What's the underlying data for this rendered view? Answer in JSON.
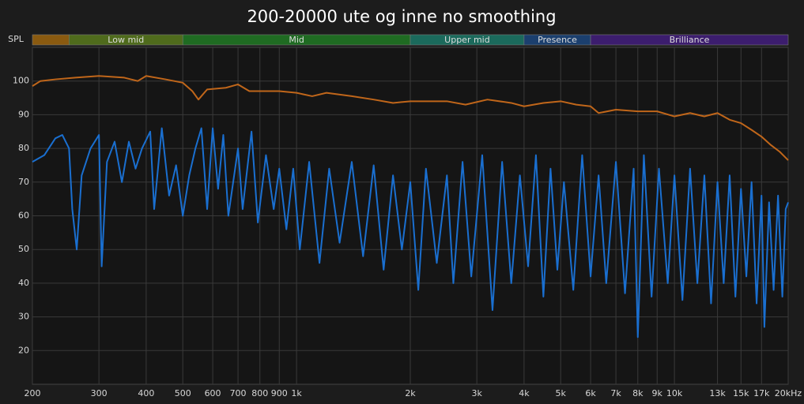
{
  "chart_data": {
    "type": "line",
    "title": "200-20000 ute og inne no smoothing",
    "ylabel": "SPL",
    "log_x": true,
    "grid": true,
    "xlim": [
      200,
      20000
    ],
    "ylim": [
      10,
      110
    ],
    "yticks": [
      20,
      30,
      40,
      50,
      60,
      70,
      80,
      90,
      100
    ],
    "xticks": [
      200,
      300,
      400,
      500,
      600,
      700,
      800,
      900,
      {
        "value": 1000,
        "label": "1k"
      },
      {
        "value": 2000,
        "label": "2k"
      },
      {
        "value": 3000,
        "label": "3k"
      },
      {
        "value": 4000,
        "label": "4k"
      },
      {
        "value": 5000,
        "label": "5k"
      },
      {
        "value": 6000,
        "label": "6k"
      },
      {
        "value": 7000,
        "label": "7k"
      },
      {
        "value": 8000,
        "label": "8k"
      },
      {
        "value": 9000,
        "label": "9k"
      },
      {
        "value": 10000,
        "label": "10k"
      },
      {
        "value": 13000,
        "label": "13k"
      },
      {
        "value": 15000,
        "label": "15k"
      },
      {
        "value": 17000,
        "label": "17k"
      },
      {
        "value": 20000,
        "label": "20kHz"
      }
    ],
    "bands": [
      {
        "name": null,
        "from": 200,
        "to": 250,
        "color": "#8a5a10"
      },
      {
        "name": "Low mid",
        "from": 250,
        "to": 500,
        "color": "#4f6b1c"
      },
      {
        "name": "Mid",
        "from": 500,
        "to": 2000,
        "color": "#1f6b22"
      },
      {
        "name": "Upper mid",
        "from": 2000,
        "to": 4000,
        "color": "#1b6a5c"
      },
      {
        "name": "Presence",
        "from": 4000,
        "to": 6000,
        "color": "#1b3f6e"
      },
      {
        "name": "Brilliance",
        "from": 6000,
        "to": 20000,
        "color": "#3c1d6e"
      }
    ],
    "series": [
      {
        "color": "#c0661a",
        "x": [
          200,
          210,
          230,
          260,
          300,
          350,
          380,
          400,
          450,
          500,
          530,
          550,
          580,
          650,
          700,
          750,
          900,
          1000,
          1100,
          1200,
          1400,
          1600,
          1800,
          2000,
          2500,
          2800,
          3200,
          3700,
          4000,
          4500,
          5000,
          5500,
          6000,
          6300,
          7000,
          8000,
          9000,
          10000,
          11000,
          12000,
          13000,
          14000,
          15000,
          16000,
          17000,
          18000,
          19000,
          20000
        ],
        "values": [
          98.5,
          100,
          100.5,
          101,
          101.5,
          101,
          100,
          101.5,
          100.5,
          99.5,
          97,
          94.5,
          97.5,
          98,
          99,
          97,
          97,
          96.5,
          95.5,
          96.5,
          95.5,
          94.5,
          93.5,
          94,
          94,
          93,
          94.5,
          93.5,
          92.5,
          93.5,
          94,
          93,
          92.5,
          90.5,
          91.5,
          91,
          91,
          89.5,
          90.5,
          89.5,
          90.5,
          88.5,
          87.5,
          85.5,
          83.5,
          81,
          79,
          76.5
        ]
      },
      {
        "color": "#1a6fd0",
        "x": [
          200,
          215,
          230,
          240,
          250,
          255,
          262,
          270,
          285,
          300,
          305,
          315,
          330,
          345,
          360,
          375,
          390,
          410,
          420,
          440,
          460,
          480,
          500,
          520,
          540,
          560,
          580,
          600,
          620,
          640,
          660,
          700,
          720,
          760,
          790,
          830,
          870,
          900,
          940,
          980,
          1020,
          1080,
          1150,
          1220,
          1300,
          1400,
          1500,
          1600,
          1700,
          1800,
          1900,
          2000,
          2100,
          2200,
          2350,
          2500,
          2600,
          2750,
          2900,
          3100,
          3300,
          3500,
          3700,
          3900,
          4100,
          4300,
          4500,
          4700,
          4900,
          5100,
          5400,
          5700,
          6000,
          6300,
          6600,
          7000,
          7400,
          7800,
          8000,
          8300,
          8700,
          9100,
          9600,
          10000,
          10500,
          11000,
          11500,
          12000,
          12500,
          13000,
          13500,
          14000,
          14500,
          15000,
          15500,
          16000,
          16500,
          17000,
          17300,
          17800,
          18300,
          18800,
          19300,
          19700,
          20000
        ],
        "values": [
          76,
          78,
          83,
          84,
          80,
          62,
          50,
          72,
          80,
          84,
          45,
          76,
          82,
          70,
          82,
          74,
          80,
          85,
          62,
          86,
          66,
          75,
          60,
          72,
          80,
          86,
          62,
          86,
          68,
          84,
          60,
          80,
          62,
          85,
          58,
          78,
          62,
          74,
          56,
          74,
          50,
          76,
          46,
          74,
          52,
          76,
          48,
          75,
          44,
          72,
          50,
          70,
          38,
          74,
          46,
          72,
          40,
          76,
          42,
          78,
          32,
          76,
          40,
          72,
          45,
          78,
          36,
          74,
          44,
          70,
          38,
          78,
          42,
          72,
          40,
          76,
          37,
          74,
          24,
          78,
          36,
          74,
          40,
          72,
          35,
          74,
          40,
          72,
          34,
          70,
          40,
          72,
          36,
          68,
          42,
          70,
          34,
          66,
          27,
          64,
          38,
          66,
          36,
          62,
          64
        ]
      }
    ]
  }
}
